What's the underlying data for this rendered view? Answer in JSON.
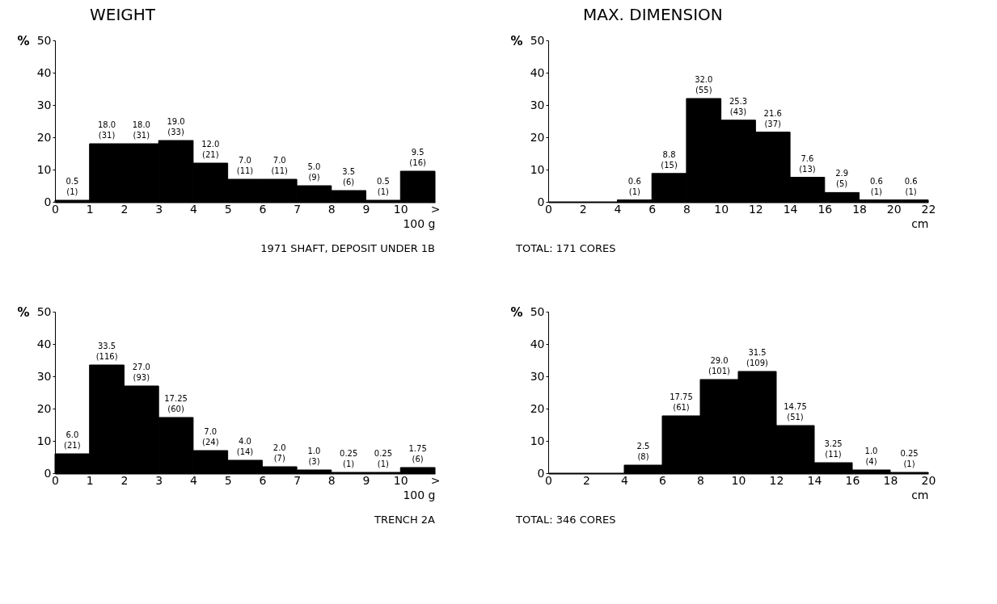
{
  "chart_data": [
    {
      "type": "histogram",
      "title": "WEIGHT",
      "xlabel": "100 g",
      "ylabel": "%",
      "color": "#000000",
      "bins": [
        0,
        1,
        2,
        3,
        4,
        5,
        6,
        7,
        8,
        9,
        10,
        11
      ],
      "values": [
        0.5,
        18.0,
        18.0,
        19.0,
        12.0,
        7.0,
        7.0,
        5.0,
        3.5,
        0.5,
        9.5
      ],
      "value_labels": [
        "0.5\n(1)",
        "18.0\n(31)",
        "18.0\n(31)",
        "19.0\n(33)",
        "12.0\n(21)",
        "7.0\n(11)",
        "7.0\n(11)",
        "5.0\n(9)",
        "3.5\n(6)",
        "0.5\n(1)",
        "9.5\n(16)"
      ],
      "xlim": [
        0,
        11
      ],
      "xticks": [
        0,
        1,
        2,
        3,
        4,
        5,
        6,
        7,
        8,
        9,
        10,
        {
          "value": 11,
          "label": ">"
        }
      ],
      "ylim": [
        0,
        50
      ],
      "yticks": [
        0,
        10,
        20,
        30,
        40,
        50
      ],
      "annotations": [
        "1971 SHAFT, DEPOSIT UNDER 1B"
      ]
    },
    {
      "type": "histogram",
      "title": "MAX. DIMENSION",
      "xlabel": "cm",
      "ylabel": "%",
      "color": "#000000",
      "bins": [
        4,
        6,
        8,
        10,
        12,
        14,
        16,
        18,
        20,
        22
      ],
      "values": [
        0.6,
        8.8,
        32.0,
        25.3,
        21.6,
        7.6,
        2.9,
        0.6,
        0.6
      ],
      "value_labels": [
        "0.6\n(1)",
        "8.8\n(15)",
        "32.0\n(55)",
        "25.3\n(43)",
        "21.6\n(37)",
        "7.6\n(13)",
        "2.9\n(5)",
        "0.6\n(1)",
        "0.6\n(1)"
      ],
      "xlim": [
        0,
        22
      ],
      "xticks": [
        0,
        2,
        4,
        6,
        8,
        10,
        12,
        14,
        16,
        18,
        20,
        22
      ],
      "ylim": [
        0,
        50
      ],
      "yticks": [
        0,
        10,
        20,
        30,
        40,
        50
      ],
      "annotations": [
        "TOTAL: 171 CORES"
      ]
    },
    {
      "type": "histogram",
      "xlabel": "100 g",
      "ylabel": "%",
      "color": "#000000",
      "bins": [
        0,
        1,
        2,
        3,
        4,
        5,
        6,
        7,
        8,
        9,
        10,
        11
      ],
      "values": [
        6.0,
        33.5,
        27.0,
        17.25,
        7.0,
        4.0,
        2.0,
        1.0,
        0.25,
        0.25,
        1.75
      ],
      "value_labels": [
        "6.0\n(21)",
        "33.5\n(116)",
        "27.0\n(93)",
        "17.25\n(60)",
        "7.0\n(24)",
        "4.0\n(14)",
        "2.0\n(7)",
        "1.0\n(3)",
        "0.25\n(1)",
        "0.25\n(1)",
        "1.75\n(6)"
      ],
      "xlim": [
        0,
        11
      ],
      "xticks": [
        0,
        1,
        2,
        3,
        4,
        5,
        6,
        7,
        8,
        9,
        10,
        {
          "value": 11,
          "label": ">"
        }
      ],
      "ylim": [
        0,
        50
      ],
      "yticks": [
        0,
        10,
        20,
        30,
        40,
        50
      ],
      "annotations": [
        "TRENCH 2A"
      ]
    },
    {
      "type": "histogram",
      "xlabel": "cm",
      "ylabel": "%",
      "color": "#000000",
      "bins": [
        4,
        6,
        8,
        10,
        12,
        14,
        16,
        18,
        20
      ],
      "values": [
        2.5,
        17.75,
        29.0,
        31.5,
        14.75,
        3.25,
        1.0,
        0.25
      ],
      "value_labels": [
        "2.5\n(8)",
        "17.75\n(61)",
        "29.0\n(101)",
        "31.5\n(109)",
        "14.75\n(51)",
        "3.25\n(11)",
        "1.0\n(4)",
        "0.25\n(1)"
      ],
      "xlim": [
        0,
        20
      ],
      "xticks": [
        0,
        2,
        4,
        6,
        8,
        10,
        12,
        14,
        16,
        18,
        20
      ],
      "ylim": [
        0,
        50
      ],
      "yticks": [
        0,
        10,
        20,
        30,
        40,
        50
      ],
      "annotations": [
        "TOTAL: 346 CORES"
      ]
    }
  ]
}
